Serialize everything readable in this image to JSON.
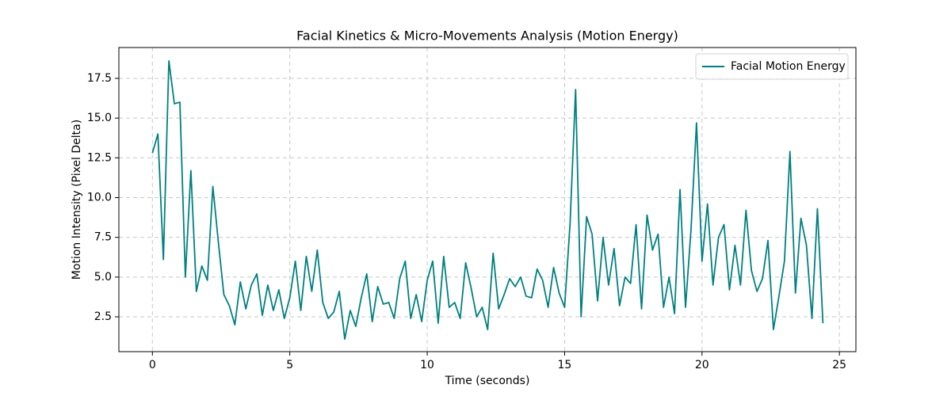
{
  "chart_data": {
    "type": "line",
    "title": "Facial Kinetics & Micro-Movements Analysis (Motion Energy)",
    "xlabel": "Time (seconds)",
    "ylabel": "Motion Intensity (Pixel Delta)",
    "x": [
      0.0,
      0.2,
      0.4,
      0.6,
      0.8,
      1.0,
      1.2,
      1.4,
      1.6,
      1.8,
      2.0,
      2.2,
      2.4,
      2.6,
      2.8,
      3.0,
      3.2,
      3.4,
      3.6,
      3.8,
      4.0,
      4.2,
      4.4,
      4.6,
      4.8,
      5.0,
      5.2,
      5.4,
      5.6,
      5.8,
      6.0,
      6.2,
      6.4,
      6.6,
      6.8,
      7.0,
      7.2,
      7.4,
      7.6,
      7.8,
      8.0,
      8.2,
      8.4,
      8.6,
      8.8,
      9.0,
      9.2,
      9.4,
      9.6,
      9.8,
      10.0,
      10.2,
      10.4,
      10.6,
      10.8,
      11.0,
      11.2,
      11.4,
      11.6,
      11.8,
      12.0,
      12.2,
      12.4,
      12.6,
      12.8,
      13.0,
      13.2,
      13.4,
      13.6,
      13.8,
      14.0,
      14.2,
      14.4,
      14.6,
      14.8,
      15.0,
      15.2,
      15.4,
      15.6,
      15.8,
      16.0,
      16.2,
      16.4,
      16.6,
      16.8,
      17.0,
      17.2,
      17.4,
      17.6,
      17.8,
      18.0,
      18.2,
      18.4,
      18.6,
      18.8,
      19.0,
      19.2,
      19.4,
      19.6,
      19.8,
      20.0,
      20.2,
      20.4,
      20.6,
      20.8,
      21.0,
      21.2,
      21.4,
      21.6,
      21.8,
      22.0,
      22.2,
      22.4,
      22.6,
      22.8,
      23.0,
      23.2,
      23.4,
      23.6,
      23.8,
      24.0,
      24.2,
      24.4
    ],
    "series": [
      {
        "name": "Facial Motion Energy",
        "color": "#008080",
        "values": [
          12.8,
          14.0,
          6.1,
          18.6,
          15.9,
          16.0,
          5.0,
          11.7,
          4.1,
          5.7,
          4.8,
          10.7,
          7.2,
          3.9,
          3.2,
          2.0,
          4.7,
          3.0,
          4.5,
          5.2,
          2.6,
          4.5,
          2.9,
          4.2,
          2.4,
          3.7,
          6.0,
          2.9,
          6.3,
          4.1,
          6.7,
          3.4,
          2.4,
          2.8,
          4.1,
          1.1,
          2.9,
          1.9,
          3.7,
          5.2,
          2.2,
          4.4,
          3.3,
          3.4,
          2.4,
          4.9,
          6.0,
          2.4,
          3.9,
          2.2,
          4.8,
          6.0,
          2.1,
          6.3,
          3.1,
          3.4,
          2.4,
          5.9,
          4.3,
          2.5,
          3.1,
          1.7,
          6.5,
          3.0,
          3.9,
          4.9,
          4.4,
          5.0,
          3.8,
          3.7,
          5.5,
          4.8,
          3.1,
          5.6,
          4.0,
          3.1,
          8.4,
          16.8,
          2.5,
          8.8,
          7.7,
          3.5,
          7.5,
          4.5,
          6.8,
          3.2,
          5.0,
          4.6,
          8.3,
          3.0,
          8.9,
          6.7,
          7.7,
          3.1,
          5.0,
          2.7,
          10.5,
          3.1,
          8.0,
          14.7,
          6.0,
          9.6,
          4.5,
          7.5,
          8.3,
          4.2,
          7.0,
          4.5,
          9.2,
          5.4,
          4.1,
          4.9,
          7.3,
          1.7,
          3.8,
          6.0,
          12.9,
          4.0,
          8.7,
          7.0,
          2.4,
          9.3,
          2.1
        ]
      }
    ],
    "xlim": [
      -1.22,
      25.6
    ],
    "xticks": [
      0,
      5,
      10,
      15,
      20,
      25
    ],
    "ylim": [
      0.31,
      19.44
    ],
    "yticks": [
      2.5,
      {
        "value": 5,
        "label": "5.0"
      },
      7.5,
      {
        "value": 10,
        "label": "10.0"
      },
      12.5,
      {
        "value": 15,
        "label": "15.0"
      },
      17.5
    ],
    "grid": true,
    "legend": "upper right"
  }
}
